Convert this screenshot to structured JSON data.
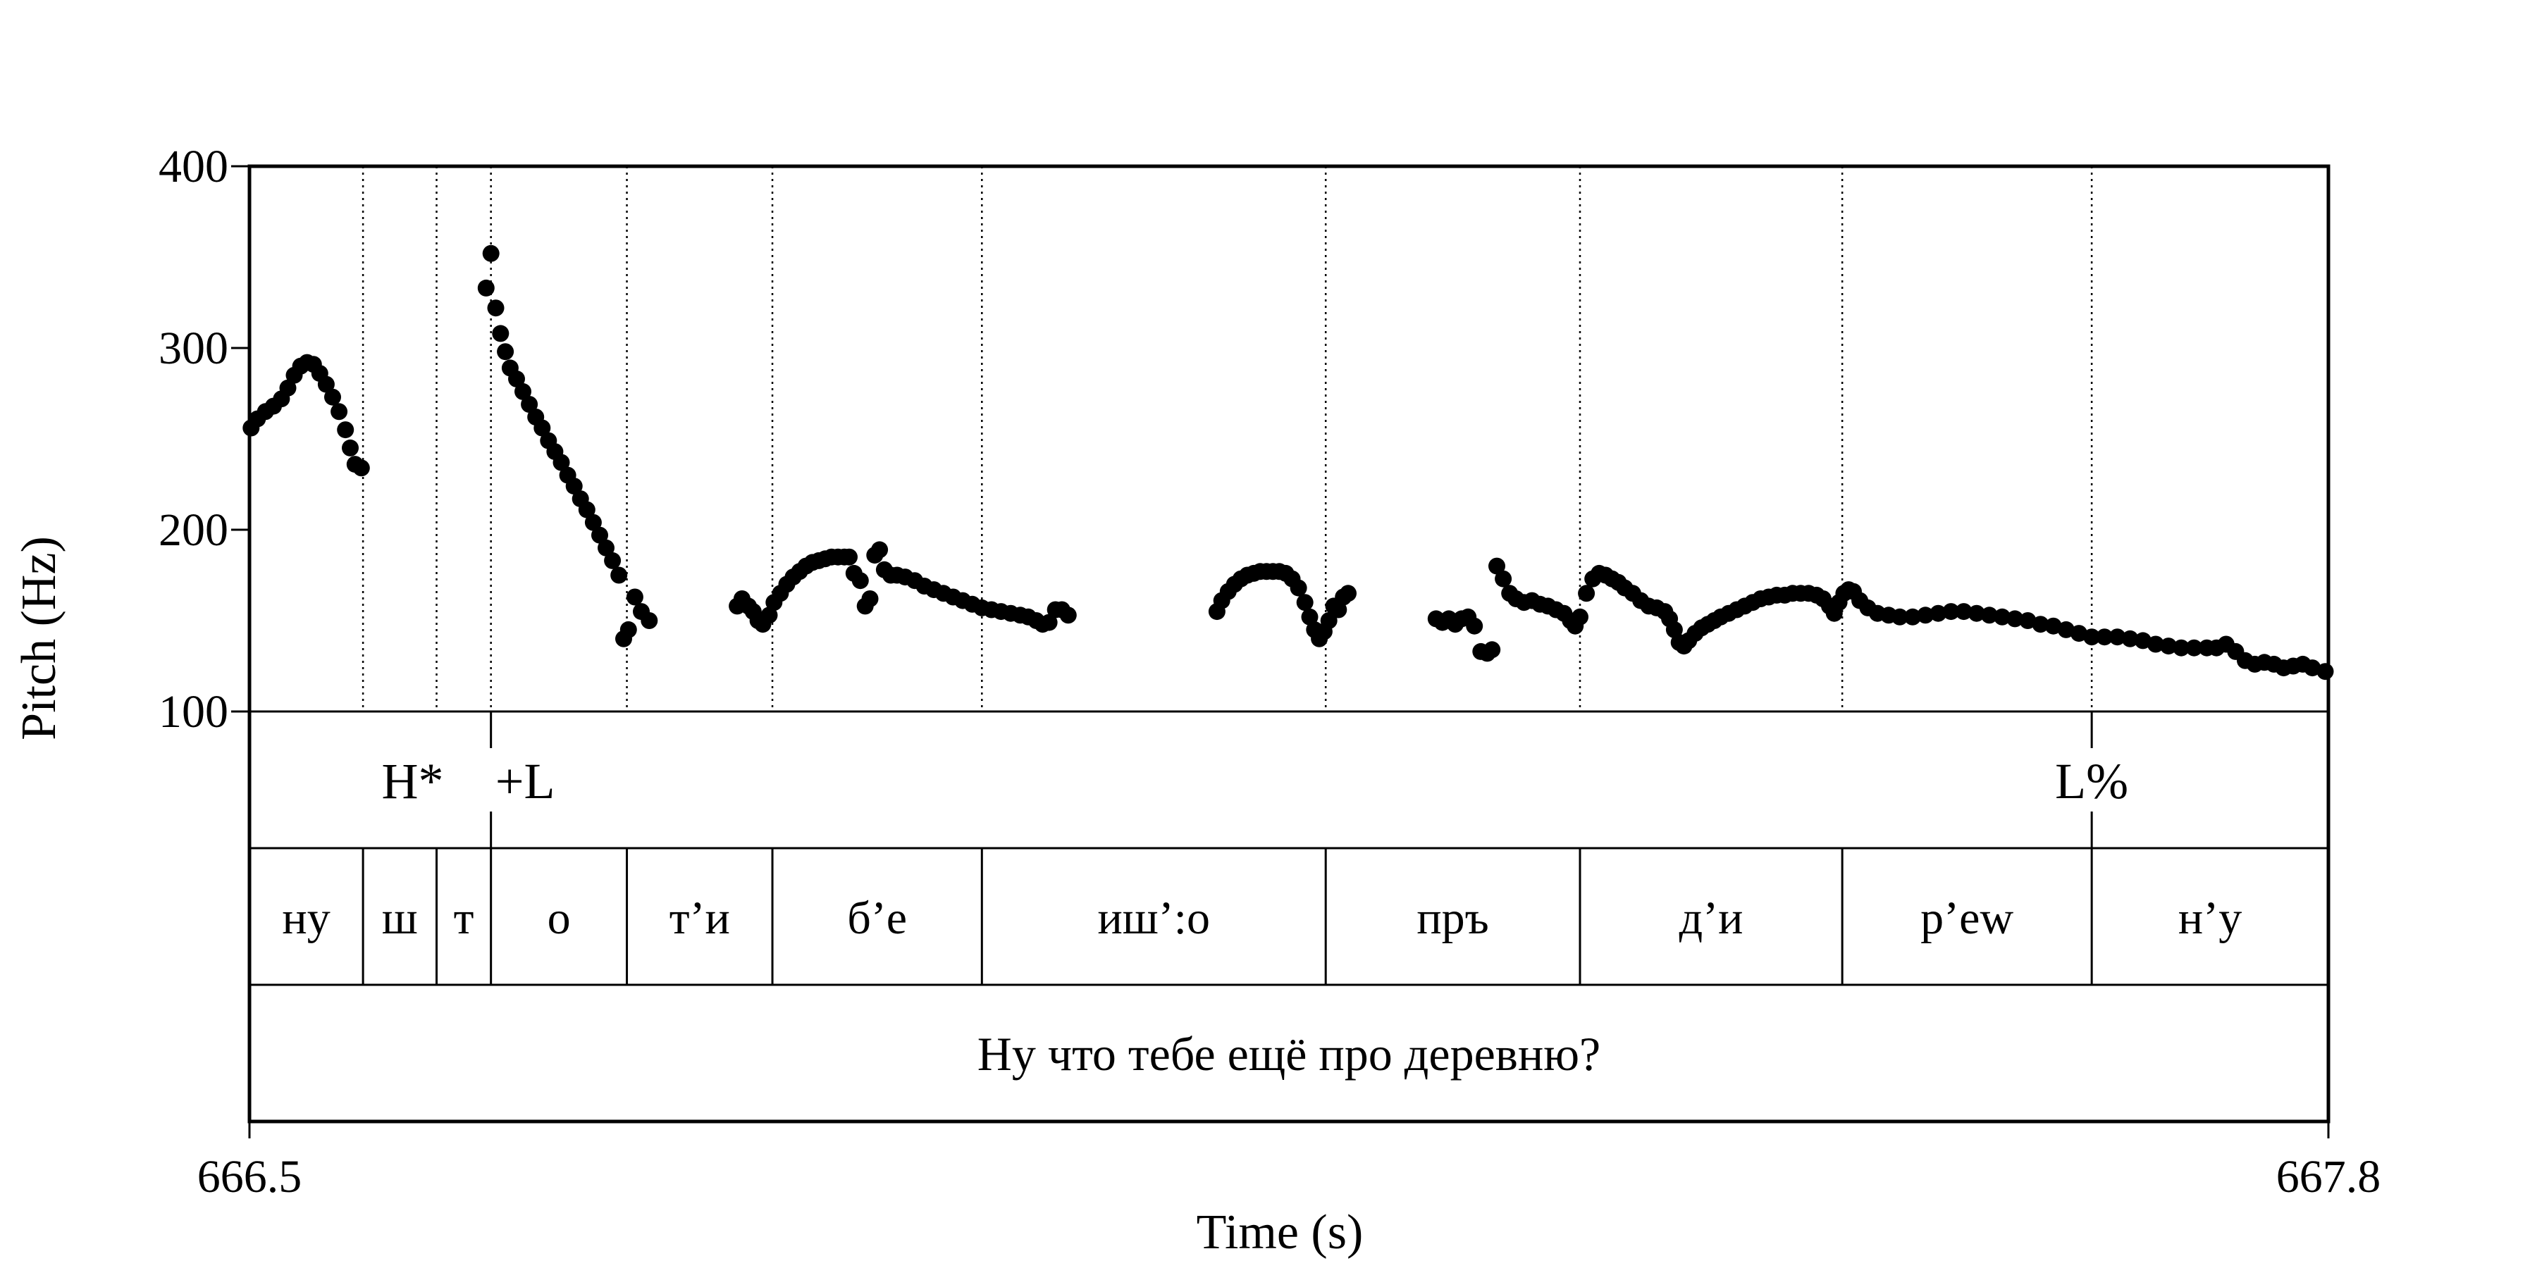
{
  "chart_data": {
    "type": "scatter",
    "xlabel": "Time (s)",
    "ylabel": "Pitch (Hz)",
    "xlim": [
      666.5,
      667.8
    ],
    "ylim": [
      100,
      400
    ],
    "x_ticks": [
      "666.5",
      "667.8"
    ],
    "y_ticks": [
      "100",
      "200",
      "300",
      "400"
    ],
    "series": [
      {
        "values": [
          [
            666.501,
            256
          ],
          [
            666.505,
            261
          ],
          [
            666.51,
            265
          ],
          [
            666.515,
            268
          ],
          [
            666.52,
            272
          ],
          [
            666.524,
            278
          ],
          [
            666.528,
            285
          ],
          [
            666.532,
            290
          ],
          [
            666.536,
            292
          ],
          [
            666.54,
            291
          ],
          [
            666.544,
            286
          ],
          [
            666.548,
            280
          ],
          [
            666.552,
            273
          ],
          [
            666.556,
            265
          ],
          [
            666.56,
            255
          ],
          [
            666.563,
            245
          ],
          [
            666.566,
            236
          ],
          [
            666.57,
            234
          ],
          [
            666.648,
            333
          ],
          [
            666.651,
            352
          ],
          [
            666.654,
            322
          ],
          [
            666.657,
            308
          ],
          [
            666.66,
            298
          ],
          [
            666.663,
            289
          ],
          [
            666.667,
            283
          ],
          [
            666.671,
            276
          ],
          [
            666.675,
            269
          ],
          [
            666.679,
            262
          ],
          [
            666.683,
            256
          ],
          [
            666.687,
            249
          ],
          [
            666.691,
            243
          ],
          [
            666.695,
            237
          ],
          [
            666.699,
            230
          ],
          [
            666.703,
            224
          ],
          [
            666.707,
            217
          ],
          [
            666.711,
            211
          ],
          [
            666.715,
            204
          ],
          [
            666.719,
            197
          ],
          [
            666.723,
            190
          ],
          [
            666.727,
            183
          ],
          [
            666.731,
            175
          ],
          [
            666.734,
            140
          ],
          [
            666.737,
            145
          ],
          [
            666.741,
            163
          ],
          [
            666.745,
            155
          ],
          [
            666.75,
            150
          ],
          [
            666.805,
            158
          ],
          [
            666.808,
            162
          ],
          [
            666.812,
            158
          ],
          [
            666.815,
            155
          ],
          [
            666.818,
            150
          ],
          [
            666.821,
            148
          ],
          [
            666.825,
            153
          ],
          [
            666.828,
            160
          ],
          [
            666.832,
            165
          ],
          [
            666.836,
            170
          ],
          [
            666.84,
            174
          ],
          [
            666.844,
            177
          ],
          [
            666.848,
            180
          ],
          [
            666.852,
            182
          ],
          [
            666.856,
            183
          ],
          [
            666.86,
            184
          ],
          [
            666.864,
            185
          ],
          [
            666.868,
            185
          ],
          [
            666.872,
            185
          ],
          [
            666.875,
            185
          ],
          [
            666.878,
            176
          ],
          [
            666.882,
            172
          ],
          [
            666.885,
            158
          ],
          [
            666.888,
            162
          ],
          [
            666.891,
            186
          ],
          [
            666.894,
            189
          ],
          [
            666.897,
            178
          ],
          [
            666.901,
            175
          ],
          [
            666.905,
            175
          ],
          [
            666.91,
            174
          ],
          [
            666.916,
            172
          ],
          [
            666.922,
            169
          ],
          [
            666.928,
            167
          ],
          [
            666.934,
            165
          ],
          [
            666.94,
            163
          ],
          [
            666.946,
            161
          ],
          [
            666.952,
            159
          ],
          [
            666.958,
            157
          ],
          [
            666.964,
            156
          ],
          [
            666.97,
            155
          ],
          [
            666.976,
            154
          ],
          [
            666.982,
            153
          ],
          [
            666.987,
            152
          ],
          [
            666.992,
            150
          ],
          [
            666.996,
            148
          ],
          [
            667.0,
            149
          ],
          [
            667.004,
            156
          ],
          [
            667.008,
            156
          ],
          [
            667.012,
            153
          ],
          [
            667.105,
            155
          ],
          [
            667.108,
            161
          ],
          [
            667.112,
            166
          ],
          [
            667.116,
            170
          ],
          [
            667.12,
            173
          ],
          [
            667.124,
            175
          ],
          [
            667.128,
            176
          ],
          [
            667.132,
            177
          ],
          [
            667.136,
            177
          ],
          [
            667.14,
            177
          ],
          [
            667.144,
            177
          ],
          [
            667.148,
            176
          ],
          [
            667.152,
            173
          ],
          [
            667.156,
            168
          ],
          [
            667.16,
            160
          ],
          [
            667.163,
            152
          ],
          [
            667.166,
            145
          ],
          [
            667.169,
            140
          ],
          [
            667.172,
            144
          ],
          [
            667.175,
            150
          ],
          [
            667.178,
            158
          ],
          [
            667.181,
            156
          ],
          [
            667.184,
            163
          ],
          [
            667.187,
            165
          ],
          [
            667.242,
            151
          ],
          [
            667.246,
            149
          ],
          [
            667.25,
            151
          ],
          [
            667.254,
            148
          ],
          [
            667.258,
            151
          ],
          [
            667.262,
            152
          ],
          [
            667.266,
            147
          ],
          [
            667.27,
            133
          ],
          [
            667.274,
            132
          ],
          [
            667.277,
            134
          ],
          [
            667.28,
            180
          ],
          [
            667.284,
            173
          ],
          [
            667.288,
            165
          ],
          [
            667.292,
            162
          ],
          [
            667.297,
            160
          ],
          [
            667.302,
            161
          ],
          [
            667.307,
            159
          ],
          [
            667.312,
            158
          ],
          [
            667.317,
            156
          ],
          [
            667.322,
            154
          ],
          [
            667.326,
            150
          ],
          [
            667.329,
            147
          ],
          [
            667.332,
            152
          ],
          [
            667.336,
            165
          ],
          [
            667.34,
            173
          ],
          [
            667.344,
            176
          ],
          [
            667.348,
            175
          ],
          [
            667.352,
            173
          ],
          [
            667.356,
            171
          ],
          [
            667.36,
            168
          ],
          [
            667.365,
            165
          ],
          [
            667.37,
            161
          ],
          [
            667.375,
            158
          ],
          [
            667.38,
            157
          ],
          [
            667.385,
            155
          ],
          [
            667.388,
            151
          ],
          [
            667.391,
            145
          ],
          [
            667.394,
            138
          ],
          [
            667.397,
            136
          ],
          [
            667.4,
            139
          ],
          [
            667.404,
            143
          ],
          [
            667.408,
            146
          ],
          [
            667.412,
            148
          ],
          [
            667.416,
            150
          ],
          [
            667.42,
            152
          ],
          [
            667.425,
            154
          ],
          [
            667.43,
            156
          ],
          [
            667.435,
            158
          ],
          [
            667.44,
            160
          ],
          [
            667.445,
            162
          ],
          [
            667.45,
            163
          ],
          [
            667.455,
            164
          ],
          [
            667.46,
            164
          ],
          [
            667.465,
            165
          ],
          [
            667.47,
            165
          ],
          [
            667.475,
            165
          ],
          [
            667.48,
            164
          ],
          [
            667.484,
            162
          ],
          [
            667.488,
            158
          ],
          [
            667.491,
            154
          ],
          [
            667.494,
            160
          ],
          [
            667.497,
            165
          ],
          [
            667.5,
            167
          ],
          [
            667.503,
            166
          ],
          [
            667.507,
            161
          ],
          [
            667.512,
            157
          ],
          [
            667.518,
            154
          ],
          [
            667.525,
            153
          ],
          [
            667.532,
            152
          ],
          [
            667.54,
            152
          ],
          [
            667.548,
            153
          ],
          [
            667.556,
            154
          ],
          [
            667.564,
            155
          ],
          [
            667.572,
            155
          ],
          [
            667.58,
            154
          ],
          [
            667.588,
            153
          ],
          [
            667.596,
            152
          ],
          [
            667.604,
            151
          ],
          [
            667.612,
            150
          ],
          [
            667.62,
            148
          ],
          [
            667.628,
            147
          ],
          [
            667.636,
            145
          ],
          [
            667.644,
            143
          ],
          [
            667.652,
            141
          ],
          [
            667.66,
            141
          ],
          [
            667.668,
            141
          ],
          [
            667.676,
            140
          ],
          [
            667.684,
            139
          ],
          [
            667.692,
            137
          ],
          [
            667.7,
            136
          ],
          [
            667.708,
            135
          ],
          [
            667.716,
            135
          ],
          [
            667.724,
            135
          ],
          [
            667.73,
            135
          ],
          [
            667.736,
            137
          ],
          [
            667.742,
            133
          ],
          [
            667.748,
            128
          ],
          [
            667.754,
            126
          ],
          [
            667.76,
            127
          ],
          [
            667.766,
            126
          ],
          [
            667.772,
            124
          ],
          [
            667.778,
            125
          ],
          [
            667.784,
            126
          ],
          [
            667.79,
            124
          ],
          [
            667.798,
            122
          ]
        ]
      }
    ]
  },
  "tiers": {
    "tones": [
      {
        "label": "H*",
        "time": 666.602
      },
      {
        "label": "+L",
        "time": 666.652
      },
      {
        "label": "L%",
        "time": 667.652
      }
    ],
    "syllable_boundaries": [
      666.571,
      666.617,
      666.651,
      666.736,
      666.827,
      666.958,
      667.173,
      667.332,
      667.496,
      667.652
    ],
    "syllables": [
      "ну",
      "ш",
      "т",
      "о",
      "т’и",
      "б’е",
      "иш’:о",
      "пръ",
      "д’и",
      "р’ew",
      "н’у"
    ],
    "sentence": "Ну что тебе ещё про деревню?"
  }
}
